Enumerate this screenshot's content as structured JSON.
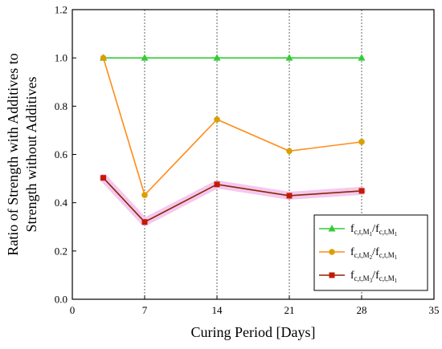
{
  "chart_data": {
    "type": "line",
    "xlabel": "Curing Period [Days]",
    "ylabel_lines": [
      "Ratio of Strength with Additives to",
      "Strength without Additives"
    ],
    "xlim": [
      0,
      35
    ],
    "ylim": [
      0.0,
      1.2
    ],
    "x_ticks": [
      "0",
      "7",
      "14",
      "21",
      "28",
      "35"
    ],
    "y_ticks": [
      "0.0",
      "0.2",
      "0.4",
      "0.6",
      "0.8",
      "1.0",
      "1.2"
    ],
    "x_tick_values": [
      0,
      7,
      14,
      21,
      28,
      35
    ],
    "y_tick_values": [
      0.0,
      0.2,
      0.4,
      0.6,
      0.8,
      1.0,
      1.2
    ],
    "grid": "vertical dotted",
    "legend_position": "bottom-right",
    "series": [
      {
        "label_parts": {
          "f": "f",
          "sub": "c,t,M",
          "subsub": "1",
          "slash": "/",
          "f2": "f",
          "sub2": "c,t,M",
          "subsub2": "1"
        },
        "color": "#33cc33",
        "marker": "triangle",
        "x": [
          3,
          7,
          14,
          21,
          28
        ],
        "y": [
          1.0,
          1.0,
          1.0,
          1.0,
          1.0
        ]
      },
      {
        "label_parts": {
          "f": "f",
          "sub": "c,t,M",
          "subsub": "2",
          "slash": "/",
          "f2": "f",
          "sub2": "c,t,M",
          "subsub2": "1"
        },
        "color": "#ff8c1a",
        "marker_color": "#d9a000",
        "marker": "circle",
        "x": [
          3,
          7,
          14,
          21,
          28
        ],
        "y": [
          1.0,
          0.432,
          0.745,
          0.614,
          0.652
        ]
      },
      {
        "label_parts": {
          "f": "f",
          "sub": "c,t,M",
          "subsub": "3",
          "slash": "/",
          "f2": "f",
          "sub2": "c,t,M",
          "subsub2": "1"
        },
        "color": "#8b2500",
        "marker_color": "#c41a00",
        "marker": "square",
        "highlight": "#f0b0e8",
        "x": [
          3,
          7,
          14,
          21,
          28
        ],
        "y": [
          0.503,
          0.32,
          0.476,
          0.429,
          0.449
        ]
      }
    ]
  }
}
